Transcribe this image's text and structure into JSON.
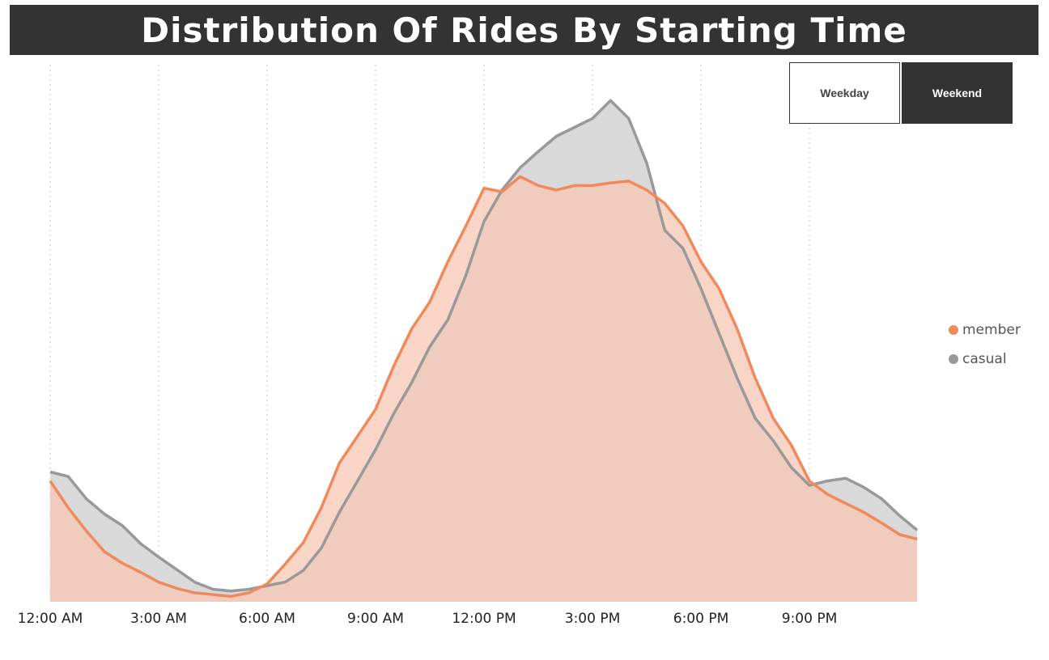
{
  "chart_data": {
    "type": "area",
    "title": "Distribution Of Rides By Starting Time",
    "xlabel": "",
    "ylabel": "",
    "x_ticks": [
      "12:00 AM",
      "3:00 AM",
      "6:00 AM",
      "9:00 AM",
      "12:00 PM",
      "3:00 PM",
      "6:00 PM",
      "9:00 PM"
    ],
    "x_range_hours": [
      0,
      24
    ],
    "grid": "vertical dotted",
    "legend_position": "right",
    "x_hours": [
      0,
      0.5,
      1,
      1.5,
      2,
      2.5,
      3,
      3.5,
      4,
      4.5,
      5,
      5.5,
      6,
      6.5,
      7,
      7.5,
      8,
      8.5,
      9,
      9.5,
      10,
      10.5,
      11,
      11.5,
      12,
      12.5,
      13,
      13.5,
      14,
      14.5,
      15,
      15.5,
      16,
      16.5,
      17,
      17.5,
      18,
      18.5,
      19,
      19.5,
      20,
      20.5,
      21,
      21.5,
      22,
      22.5,
      23,
      23.5,
      23.98
    ],
    "series": [
      {
        "name": "member",
        "color": "#F08A5D",
        "fill": "#F6C7B4",
        "values": [
          135,
          105,
          79,
          56,
          43,
          33,
          22,
          15,
          10,
          8,
          6,
          10,
          20,
          42,
          66,
          105,
          155,
          185,
          215,
          263,
          305,
          335,
          380,
          420,
          462,
          458,
          475,
          465,
          460,
          465,
          465,
          468,
          470,
          460,
          445,
          420,
          380,
          350,
          305,
          250,
          205,
          175,
          135,
          120,
          110,
          100,
          88,
          75,
          70
        ]
      },
      {
        "name": "casual",
        "color": "#999999",
        "fill": "#D9D9D9",
        "values": [
          145,
          140,
          115,
          98,
          85,
          65,
          50,
          36,
          22,
          14,
          12,
          14,
          18,
          22,
          35,
          60,
          100,
          135,
          170,
          210,
          245,
          285,
          315,
          365,
          425,
          460,
          485,
          503,
          520,
          530,
          540,
          560,
          540,
          490,
          415,
          395,
          350,
          300,
          250,
          205,
          180,
          150,
          130,
          135,
          138,
          128,
          115,
          96,
          80
        ]
      }
    ]
  },
  "toggle": {
    "weekday_label": "Weekday",
    "weekend_label": "Weekend",
    "active": "Weekend"
  },
  "colors": {
    "title_bar": "#333333",
    "member": "#F08A5D",
    "casual": "#999999"
  }
}
